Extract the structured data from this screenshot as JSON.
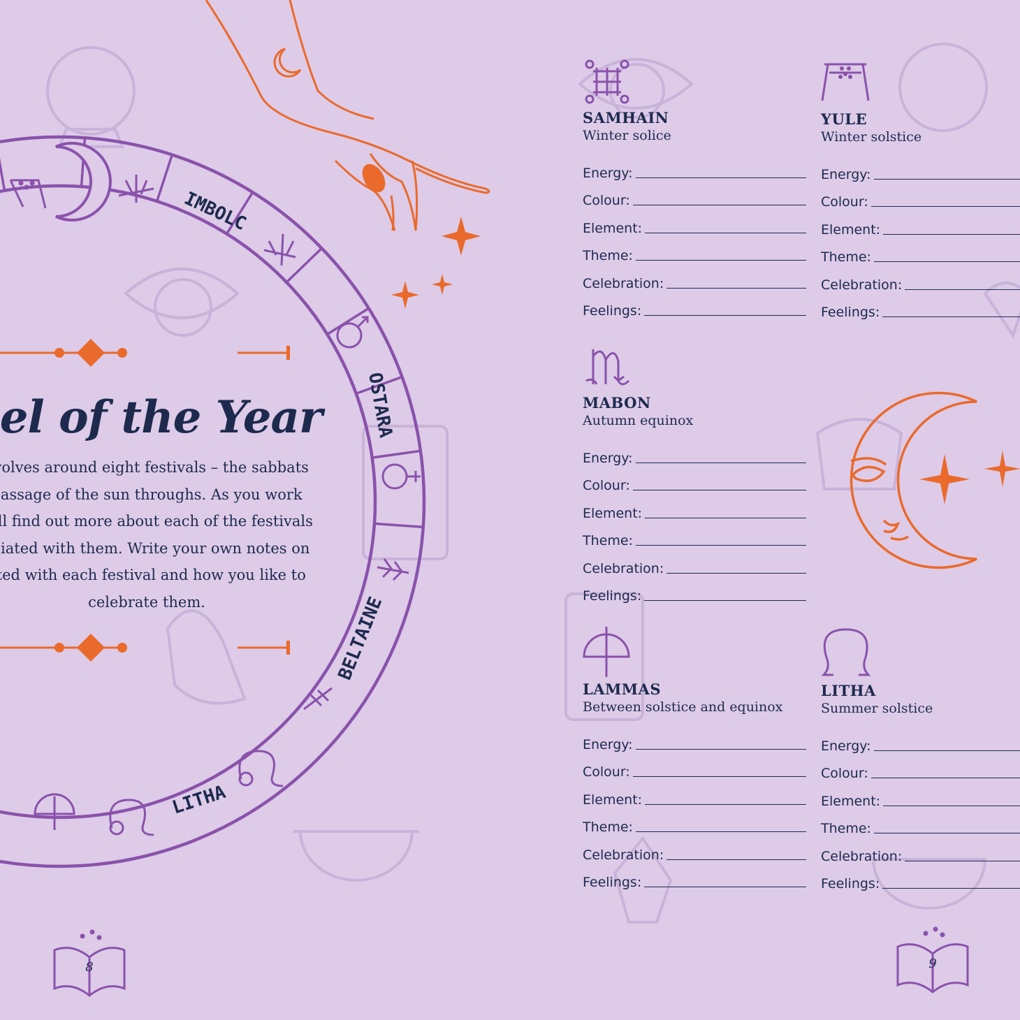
{
  "left_page": {
    "title": "eel of the Year",
    "intro_lines": [
      "evolves around eight festivals – the sabbats",
      "passage of the sun throughs. As you work",
      "will find out more about each of the festivals",
      "ociated with them. Write your own notes on",
      "ated with each festival and how you like to",
      "celebrate them."
    ],
    "wheel_labels": [
      "IMBOLC",
      "OSTARA",
      "BELTAINE",
      "LITHA"
    ],
    "page_number": "8"
  },
  "right_page": {
    "field_labels": [
      "Energy:",
      "Colour:",
      "Element:",
      "Theme:",
      "Celebration:",
      "Feelings:"
    ],
    "sabbats": [
      {
        "name": "SAMHAIN",
        "subtitle": "Winter solice",
        "icon": "samhain-sigil-icon"
      },
      {
        "name": "YULE",
        "subtitle": "Winter solstice",
        "icon": "yule-sigil-icon"
      },
      {
        "name": "MABON",
        "subtitle": "Autumn equinox",
        "icon": "mabon-sigil-icon"
      },
      {
        "name": "LAMMAS",
        "subtitle": "Between solstice and equinox",
        "icon": "lammas-sigil-icon"
      },
      {
        "name": "LITHA",
        "subtitle": "Summer solstice",
        "icon": "leo-sigil-icon"
      }
    ],
    "page_number": "9"
  },
  "colors": {
    "background": "#ddcbe8",
    "navy_text": "#1d2a4d",
    "purple_accent": "#8a52ab",
    "orange_accent": "#ea6a2b",
    "faint_deco": "#c9b3d9"
  }
}
